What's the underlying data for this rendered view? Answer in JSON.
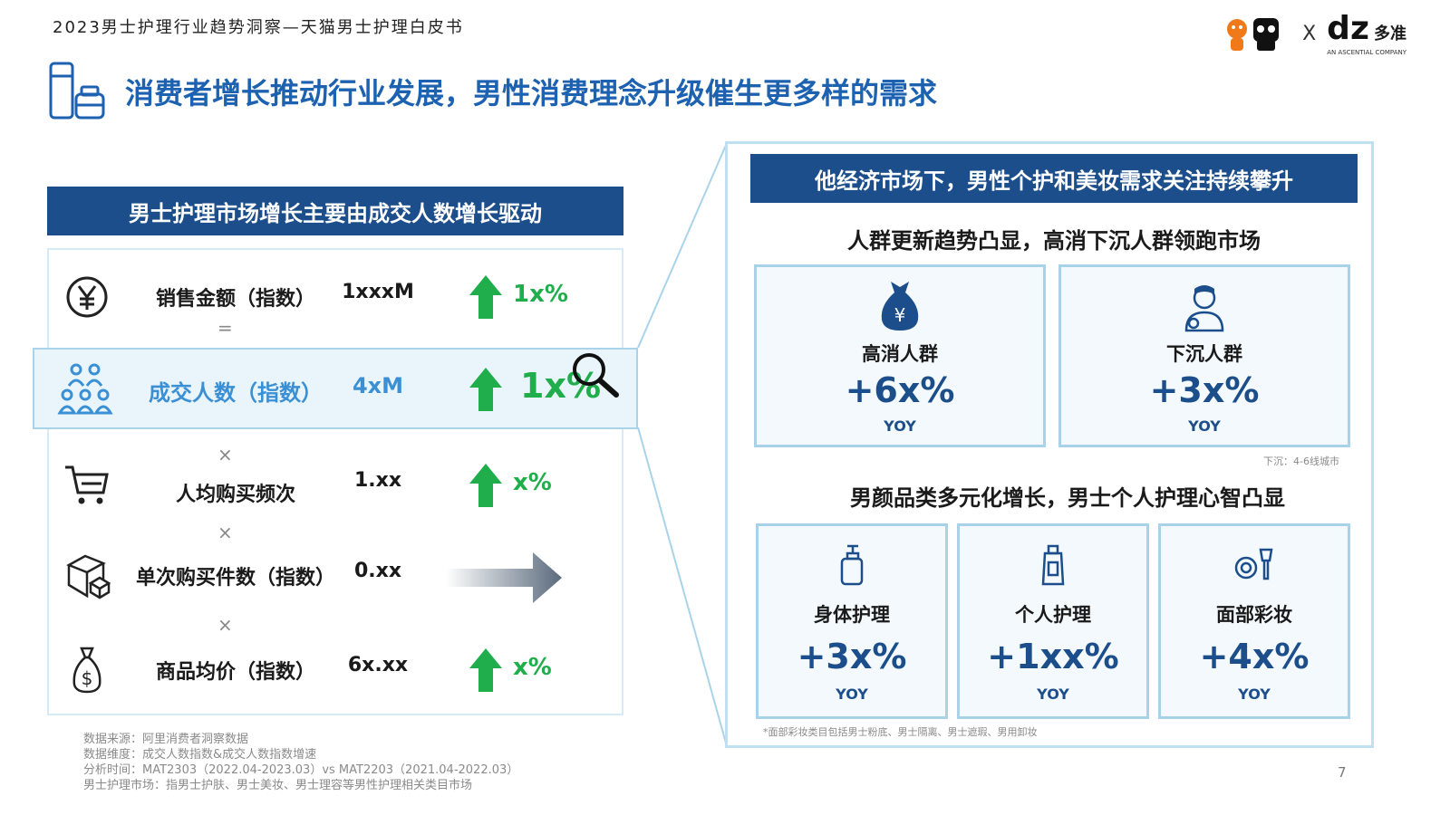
{
  "report_title": "2023男士护理行业趋势洞察—天猫男士护理白皮书",
  "logos": {
    "x": "X",
    "dz": "dz",
    "dz_cn": "多准",
    "dz_sub": "AN ASCENTIAL COMPANY"
  },
  "headline": "消费者增长推动行业发展，男性消费理念升级催生更多样的需求",
  "left": {
    "banner": "男士护理市场增长主要由成交人数增长驱动",
    "rows": [
      {
        "label": "销售金额（指数）",
        "value": "1xxxM",
        "change": "1x%",
        "icon": "yen-coin-icon",
        "trend": "up"
      },
      {
        "label": "成交人数（指数）",
        "value": "4xM",
        "change": "1x%",
        "icon": "people-group-icon",
        "trend": "up"
      },
      {
        "label": "人均购买频次",
        "value": "1.xx",
        "change": "x%",
        "icon": "shopping-cart-icon",
        "trend": "up"
      },
      {
        "label": "单次购买件数（指数）",
        "value": "0.xx",
        "change": "",
        "icon": "box-icon",
        "trend": "flat"
      },
      {
        "label": "商品均价（指数）",
        "value": "6x.xx",
        "change": "x%",
        "icon": "money-bag-icon",
        "trend": "up"
      }
    ],
    "operators": [
      "=",
      "×",
      "×",
      "×"
    ]
  },
  "right": {
    "banner": "他经济市场下，男性个护和美妆需求关注持续攀升",
    "section1_title": "人群更新趋势凸显，高消下沉人群领跑市场",
    "section1_cards": [
      {
        "name": "高消人群",
        "value": "+6x%",
        "yoy": "YOY",
        "icon": "money-bag-icon"
      },
      {
        "name": "下沉人群",
        "value": "+3x%",
        "yoy": "YOY",
        "icon": "person-icon"
      }
    ],
    "section1_note": "下沉：4-6线城市",
    "section2_title": "男颜品类多元化增长，男士个人护理心智凸显",
    "section2_cards": [
      {
        "name": "身体护理",
        "value": "+3x%",
        "yoy": "YOY",
        "icon": "pump-bottle-icon"
      },
      {
        "name": "个人护理",
        "value": "+1xx%",
        "yoy": "YOY",
        "icon": "spray-bottle-icon"
      },
      {
        "name": "面部彩妆",
        "value": "+4x%",
        "yoy": "YOY",
        "icon": "makeup-brush-icon"
      }
    ],
    "section2_note": "*面部彩妆类目包括男士粉底、男士隔离、男士遮瑕、男用卸妆"
  },
  "sources": [
    "数据来源：阿里消费者洞察数据",
    "数据维度：成交人数指数&成交人数指数增速",
    "分析时间：MAT2303（2022.04-2023.03）vs MAT2203（2021.04-2022.03）",
    "男士护理市场：指男士护肤、男士美妆、男士理容等男性护理相关类目市场"
  ],
  "page_number": "7",
  "colors": {
    "brand_blue": "#1b4e8a",
    "headline_blue": "#1d62b0",
    "up_green": "#1fae4b",
    "highlight_blue": "#3b8fd4"
  }
}
